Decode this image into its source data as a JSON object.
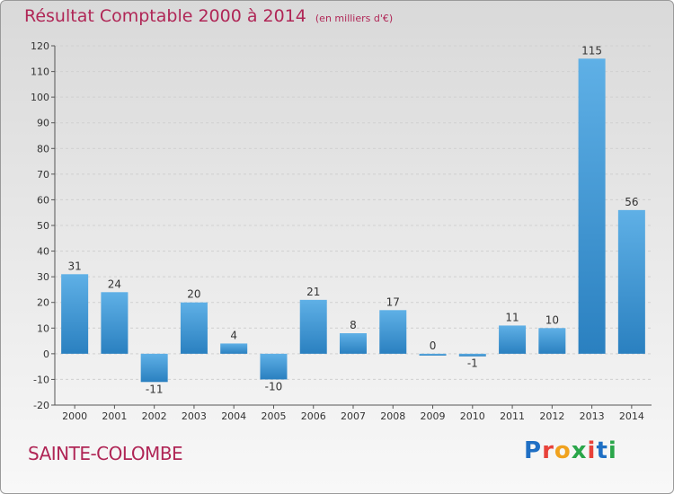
{
  "title": "Résultat Comptable 2000 à 2014",
  "subtitle": "(en milliers d'€)",
  "place": "SAINTE-COLOMBE",
  "logo": {
    "letters": [
      "P",
      "r",
      "o",
      "x",
      "i",
      "t",
      "i"
    ],
    "colors": [
      "#1f6fc4",
      "#e8423a",
      "#f0a21e",
      "#2aa64a",
      "#e8423a",
      "#1f6fc4",
      "#2aa64a"
    ]
  },
  "colors": {
    "bar_light": "#5fb0e6",
    "bar_dark": "#2a80c0",
    "title": "#b02656"
  },
  "chart_data": {
    "type": "bar",
    "title": "Résultat Comptable 2000 à 2014",
    "categories": [
      "2000",
      "2001",
      "2002",
      "2003",
      "2004",
      "2005",
      "2006",
      "2007",
      "2008",
      "2009",
      "2010",
      "2011",
      "2012",
      "2013",
      "2014"
    ],
    "values": [
      31,
      24,
      -11,
      20,
      4,
      -10,
      21,
      8,
      17,
      0,
      -1,
      11,
      10,
      115,
      56
    ],
    "data_labels": [
      "31",
      "24",
      "-11",
      "20",
      "4",
      "-10",
      "21",
      "8",
      "17",
      "0",
      "-1",
      "11",
      "10",
      "115",
      "56"
    ],
    "yticks": [
      "-20",
      "-10",
      "0",
      "10",
      "20",
      "30",
      "40",
      "50",
      "60",
      "70",
      "80",
      "90",
      "100",
      "110",
      "120"
    ],
    "ylim": [
      -20,
      120
    ],
    "grid": true
  }
}
